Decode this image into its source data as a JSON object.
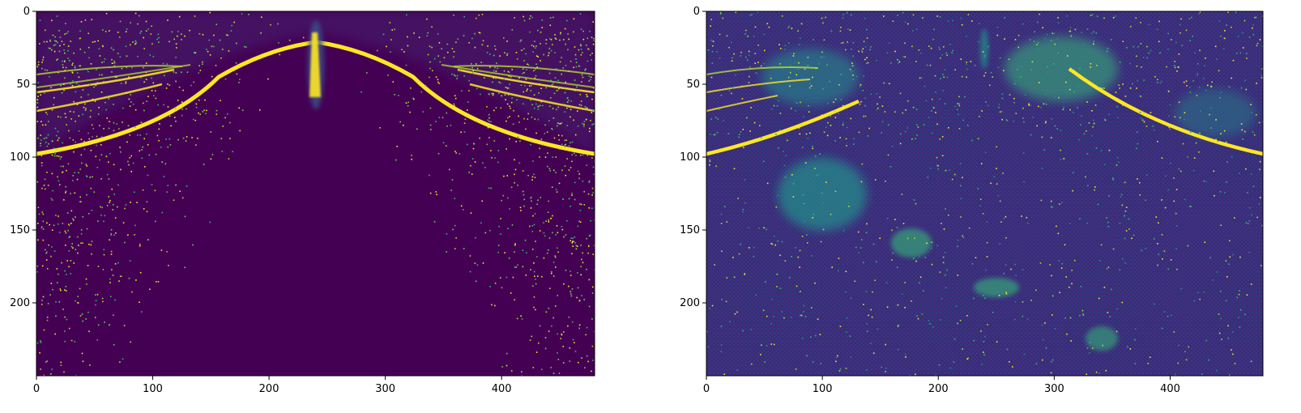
{
  "chart_data": [
    {
      "type": "heatmap",
      "description_key": "left",
      "colormap": "viridis",
      "x_ticks": [
        "0",
        "100",
        "200",
        "300",
        "400"
      ],
      "x_tick_values": [
        0,
        100,
        200,
        300,
        400
      ],
      "y_ticks": [
        "0",
        "50",
        "100",
        "150",
        "200"
      ],
      "y_tick_values": [
        0,
        50,
        100,
        150,
        200
      ],
      "xlim": [
        0,
        480
      ],
      "ylim": [
        250,
        0
      ],
      "grid": false,
      "features": {
        "vertical_plume_x": 240,
        "outer_arc_y_at_edges": 98,
        "outer_arc_y_at_center": 20,
        "inner_arcs_y_at_edges": [
          44,
          52,
          56,
          68
        ],
        "scatter_density": "high near arcs, fading toward bottom center"
      }
    },
    {
      "type": "heatmap",
      "description_key": "right",
      "colormap": "viridis",
      "x_ticks": [
        "0",
        "100",
        "200",
        "300",
        "400"
      ],
      "x_tick_values": [
        0,
        100,
        200,
        300,
        400
      ],
      "y_ticks": [
        "0",
        "50",
        "100",
        "150",
        "200"
      ],
      "y_tick_values": [
        0,
        50,
        100,
        150,
        200
      ],
      "xlim": [
        0,
        480
      ],
      "ylim": [
        250,
        0
      ],
      "grid": false,
      "features": {
        "arc_left_segment": [
          [
            0,
            98
          ],
          [
            130,
            62
          ]
        ],
        "arc_right_segment": [
          [
            320,
            48
          ],
          [
            480,
            98
          ]
        ],
        "bright_blobs": [
          [
            100,
            133
          ],
          [
            160,
            160
          ],
          [
            250,
            190
          ],
          [
            340,
            225
          ],
          [
            65,
            40
          ],
          [
            320,
            45
          ]
        ],
        "background_noise": "textured blue-green grid noise"
      }
    }
  ]
}
